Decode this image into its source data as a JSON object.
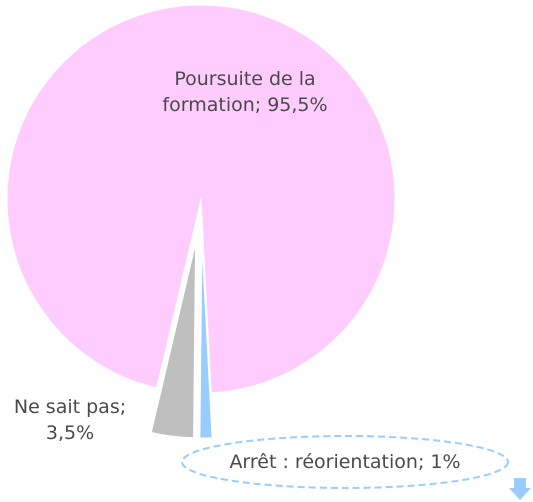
{
  "chart_data": {
    "type": "pie",
    "categories": [
      "Poursuite de la formation",
      "Ne sait pas",
      "Arrêt : réorientation"
    ],
    "values": [
      95.5,
      3.5,
      1
    ],
    "value_labels": [
      "95,5%",
      "3,5%",
      "1%"
    ],
    "colors": [
      "#ffccff",
      "#bfbfbf",
      "#99ccff"
    ]
  }
}
